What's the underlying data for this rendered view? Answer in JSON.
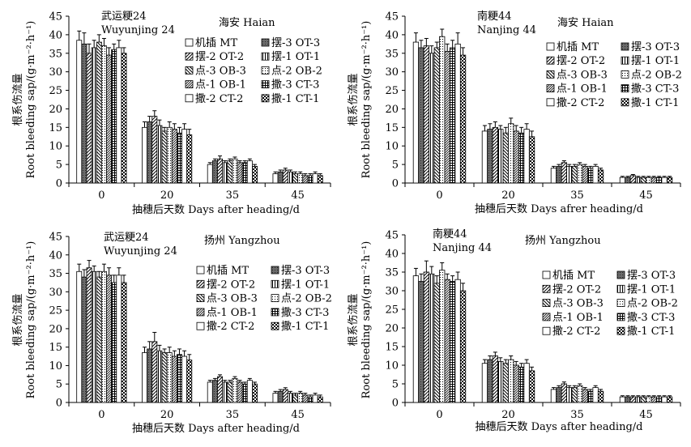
{
  "patterns": [
    "white",
    "darkgray",
    "hatch-r",
    "vlines",
    "hatch-l",
    "dots",
    "hatch-r-dense",
    "grid",
    "white2",
    "checker"
  ],
  "chart_data": [
    {
      "type": "bar",
      "title": [
        "武运粳24",
        "Wuyunjing 24"
      ],
      "location": "海安 Haian",
      "xlabel": "抽穗后天数 Days after heading/d",
      "ylabel": [
        "根系伤流量",
        "Root bleeding sap/(g·m⁻²·h⁻¹)"
      ],
      "ylim": [
        0,
        45
      ],
      "yticks": [
        0,
        5,
        10,
        15,
        20,
        25,
        30,
        35,
        40,
        45
      ],
      "categories": [
        "0",
        "20",
        "35",
        "45"
      ],
      "legend": [
        "机插 MT",
        "摆-3 OT-3",
        "摆-2 OT-2",
        "摆-1 OT-1",
        "点-3 OB-3",
        "点-2 OB-2",
        "点-1 OB-1",
        "撒-3 CT-3",
        "撒-2 CT-2",
        "撒-1 CT-1"
      ],
      "values": [
        [
          38.5,
          37.5,
          35.0,
          36.5,
          38.0,
          37.0,
          34.5,
          36.0,
          36.5,
          35.0
        ],
        [
          15.0,
          16.5,
          18.0,
          15.5,
          14.0,
          15.0,
          14.5,
          13.5,
          14.5,
          13.0
        ],
        [
          5.0,
          6.0,
          6.5,
          5.5,
          6.0,
          6.5,
          5.5,
          5.5,
          6.0,
          4.5
        ],
        [
          2.5,
          3.0,
          3.5,
          3.0,
          2.5,
          2.5,
          2.0,
          2.0,
          2.5,
          2.0
        ]
      ],
      "errors": [
        [
          2.5,
          3.0,
          2.5,
          2.0,
          2.0,
          2.0,
          2.0,
          1.5,
          2.0,
          1.5
        ],
        [
          1.5,
          1.5,
          1.5,
          1.5,
          1.0,
          1.5,
          1.5,
          1.5,
          1.5,
          1.5
        ],
        [
          0.5,
          0.5,
          0.8,
          0.5,
          0.5,
          0.5,
          0.5,
          0.5,
          0.5,
          0.5
        ],
        [
          0.5,
          0.5,
          0.5,
          0.5,
          0.5,
          0.5,
          0.5,
          0.5,
          0.5,
          0.5
        ]
      ]
    },
    {
      "type": "bar",
      "title": [
        "南粳44",
        "Nanjing 44"
      ],
      "location": "海安 Haian",
      "xlabel": "抽穗后天数 Days afrer heading/d",
      "ylabel": [
        "根系伤流量",
        "Root bleeding sap/(g·m⁻²·h⁻¹)"
      ],
      "ylim": [
        0,
        45
      ],
      "yticks": [
        0,
        5,
        10,
        15,
        20,
        25,
        30,
        35,
        40,
        45
      ],
      "categories": [
        "0",
        "20",
        "35",
        "45"
      ],
      "legend": [
        "机插 MT",
        "摆-3 OT-3",
        "摆-2 OT-2",
        "摆-1 OT-1",
        "点-3 OB-3",
        "点-2 OB-2",
        "点-1 OB-1",
        "撒-3 CT-3",
        "撒-2 CT-2",
        "撒-1 CT-1"
      ],
      "values": [
        [
          38.0,
          36.5,
          37.0,
          35.0,
          36.5,
          39.5,
          35.5,
          36.5,
          37.5,
          34.5
        ],
        [
          14.0,
          14.5,
          15.0,
          14.5,
          13.5,
          16.0,
          14.0,
          13.5,
          14.5,
          12.5
        ],
        [
          4.0,
          4.5,
          5.5,
          4.5,
          4.5,
          5.0,
          4.5,
          4.0,
          4.5,
          3.5
        ],
        [
          1.5,
          1.5,
          2.0,
          1.5,
          1.5,
          1.5,
          1.5,
          1.5,
          1.5,
          1.5
        ]
      ],
      "errors": [
        [
          2.5,
          2.0,
          2.0,
          2.0,
          1.5,
          2.0,
          2.0,
          2.0,
          3.0,
          2.0
        ],
        [
          1.5,
          1.5,
          1.5,
          1.0,
          1.5,
          1.5,
          1.5,
          1.5,
          1.5,
          1.5
        ],
        [
          0.5,
          0.5,
          0.5,
          0.5,
          0.5,
          0.5,
          0.5,
          0.5,
          0.5,
          0.5
        ],
        [
          0.3,
          0.3,
          0.3,
          0.3,
          0.3,
          0.3,
          0.3,
          0.3,
          0.3,
          0.3
        ]
      ]
    },
    {
      "type": "bar",
      "title": [
        "武运粳24",
        "Wuyunjing 24"
      ],
      "location": "扬州 Yangzhou",
      "xlabel": "抽穗后天数 Days after heading/d",
      "ylabel": [
        "根系伤流量",
        "Root bleeding sap/(g·m⁻²·h⁻¹)"
      ],
      "ylim": [
        0,
        45
      ],
      "yticks": [
        0,
        5,
        10,
        15,
        20,
        25,
        30,
        35,
        40,
        45
      ],
      "categories": [
        "0",
        "20",
        "35",
        "45"
      ],
      "legend": [
        "机插 MT",
        "摆-3 OT-3",
        "摆-2 OT-2",
        "摆-1 OT-1",
        "点-3 OB-3",
        "点-2 OB-2",
        "点-1 OB-1",
        "撒-3 CT-3",
        "撒-2 CT-2",
        "撒-1 CT-1"
      ],
      "values": [
        [
          35.5,
          34.0,
          36.5,
          35.5,
          34.0,
          35.5,
          34.5,
          32.5,
          34.5,
          32.5
        ],
        [
          13.5,
          14.5,
          16.5,
          14.0,
          13.5,
          13.5,
          12.5,
          13.0,
          12.5,
          11.5
        ],
        [
          5.5,
          6.0,
          7.0,
          5.5,
          5.5,
          6.5,
          5.5,
          5.0,
          6.0,
          5.0
        ],
        [
          2.5,
          3.0,
          3.5,
          2.5,
          2.0,
          2.5,
          2.0,
          1.5,
          2.0,
          1.5
        ]
      ],
      "errors": [
        [
          2.0,
          2.0,
          2.0,
          1.5,
          1.5,
          2.0,
          2.0,
          2.0,
          2.0,
          2.0
        ],
        [
          1.5,
          2.0,
          2.5,
          1.5,
          1.0,
          1.5,
          1.5,
          1.5,
          1.5,
          1.5
        ],
        [
          0.5,
          0.5,
          0.5,
          0.5,
          0.5,
          0.5,
          0.5,
          0.5,
          0.5,
          0.5
        ],
        [
          0.5,
          0.5,
          0.5,
          0.5,
          0.5,
          0.5,
          0.5,
          0.5,
          0.5,
          0.5
        ]
      ]
    },
    {
      "type": "bar",
      "title": [
        "南粳44",
        "Nanjing 44"
      ],
      "location": "扬州 Yangzhou",
      "xlabel": "抽穗后天数 Days after heading/d",
      "ylabel": [
        "根系伤流量",
        "Root bleeding sap/(g·m⁻²·h⁻¹)"
      ],
      "ylim": [
        0,
        45
      ],
      "yticks": [
        0,
        5,
        10,
        15,
        20,
        25,
        30,
        35,
        40,
        45
      ],
      "categories": [
        "0",
        "20",
        "35",
        "45"
      ],
      "legend": [
        "机插 MT",
        "摆-3 OT-3",
        "摆-2 OT-2",
        "摆-1 OT-1",
        "点-3 OB-3",
        "点-2 OB-2",
        "点-1 OB-1",
        "撒-3 CT-3",
        "撒-2 CT-2",
        "撒-1 CT-1"
      ],
      "values": [
        [
          34.0,
          32.5,
          35.0,
          34.5,
          32.0,
          35.5,
          33.0,
          32.5,
          33.0,
          30.0
        ],
        [
          10.5,
          11.5,
          12.5,
          11.0,
          10.5,
          11.5,
          10.0,
          9.5,
          10.5,
          8.5
        ],
        [
          3.5,
          4.0,
          5.0,
          4.0,
          4.0,
          4.5,
          3.5,
          3.0,
          4.0,
          3.0
        ],
        [
          1.5,
          1.5,
          1.5,
          1.5,
          1.5,
          1.5,
          1.5,
          1.5,
          1.5,
          1.5
        ]
      ],
      "errors": [
        [
          2.0,
          2.0,
          3.0,
          2.0,
          2.0,
          2.0,
          1.5,
          1.5,
          2.0,
          2.0
        ],
        [
          1.0,
          1.0,
          1.0,
          1.0,
          1.0,
          1.0,
          1.0,
          1.0,
          1.0,
          1.0
        ],
        [
          0.5,
          0.5,
          0.5,
          0.5,
          0.5,
          0.5,
          0.5,
          0.5,
          0.5,
          0.5
        ],
        [
          0.3,
          0.3,
          0.3,
          0.3,
          0.3,
          0.3,
          0.3,
          0.3,
          0.3,
          0.3
        ]
      ]
    }
  ]
}
